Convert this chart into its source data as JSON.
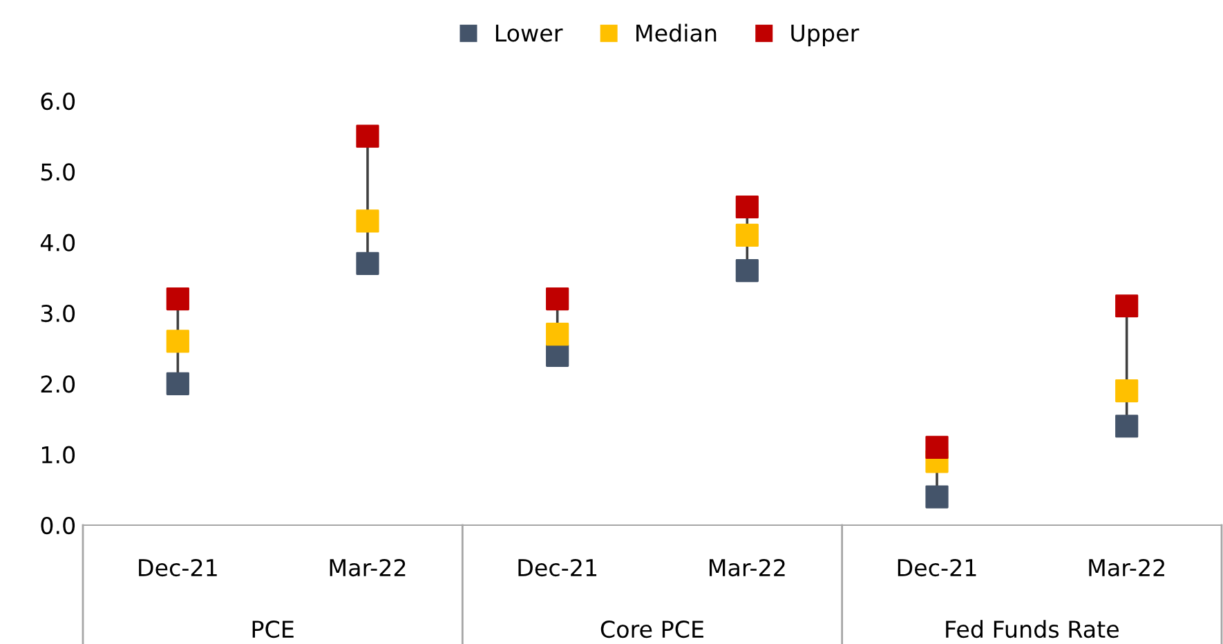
{
  "chart_data": {
    "type": "scatter",
    "categories": [
      "Dec-21",
      "Mar-22",
      "Dec-21",
      "Mar-22",
      "Dec-21",
      "Mar-22"
    ],
    "series": [
      {
        "name": "Lower",
        "color": "#44546a",
        "values": [
          2.0,
          3.7,
          2.4,
          3.6,
          0.4,
          1.4
        ]
      },
      {
        "name": "Median",
        "color": "#ffc000",
        "values": [
          2.6,
          4.3,
          2.7,
          4.1,
          0.9,
          1.9
        ]
      },
      {
        "name": "Upper",
        "color": "#c00000",
        "values": [
          3.2,
          5.5,
          3.2,
          4.5,
          1.1,
          3.1
        ]
      }
    ],
    "annotations": [
      "PCE",
      "Core PCE",
      "Fed Funds Rate"
    ],
    "ylim": [
      0,
      6
    ],
    "yticks": [
      {
        "value": 0,
        "label": "0.0"
      },
      {
        "value": 1,
        "label": "1.0"
      },
      {
        "value": 2,
        "label": "2.0"
      },
      {
        "value": 3,
        "label": "3.0"
      },
      {
        "value": 4,
        "label": "4.0"
      },
      {
        "value": 5,
        "label": "5.0"
      },
      {
        "value": 6,
        "label": "6.0"
      }
    ],
    "marker": "square",
    "legend": "top",
    "grid": false
  }
}
